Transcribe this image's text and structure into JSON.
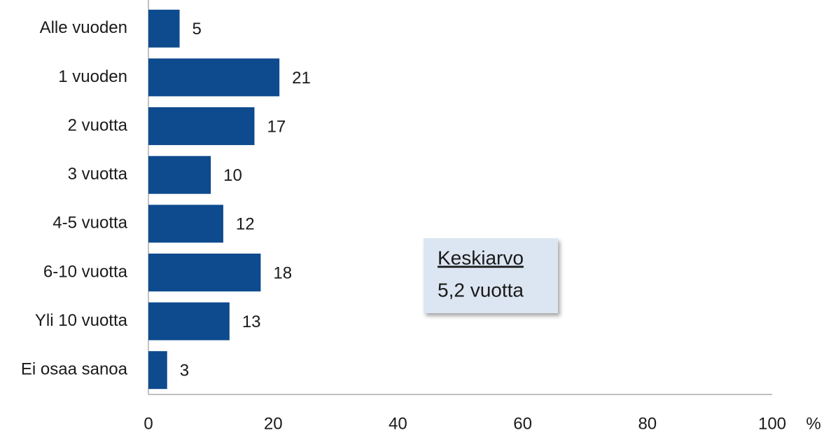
{
  "chart_data": {
    "type": "bar",
    "orientation": "horizontal",
    "categories": [
      "Alle vuoden",
      "1 vuoden",
      "2 vuotta",
      "3 vuotta",
      "4-5 vuotta",
      "6-10 vuotta",
      "Yli 10 vuotta",
      "Ei osaa sanoa"
    ],
    "values": [
      5,
      21,
      17,
      10,
      12,
      18,
      13,
      3
    ],
    "color": "#0e4a8e",
    "xlim": [
      0,
      100
    ],
    "xticks": [
      0,
      20,
      40,
      60,
      80,
      100
    ],
    "x_label": "%",
    "annotation": [
      "Keskiarvo",
      "5,2 vuotta"
    ]
  }
}
